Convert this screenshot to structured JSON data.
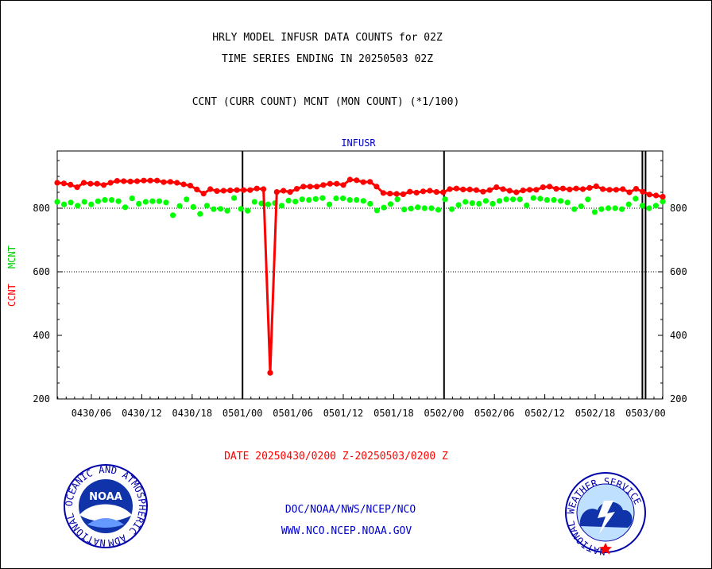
{
  "chart_data": {
    "type": "line",
    "title": "HRLY MODEL INFUSR DATA COUNTS for 02Z",
    "subtitle": "TIME SERIES ENDING IN 20250503 02Z",
    "description": "CCNT (CURR COUNT) MCNT (MON COUNT) (*1/100)",
    "panel_label": "INFUSR",
    "ylabel_ccnt": "CCNT",
    "ylabel_mcnt": "MCNT",
    "xlabel": "DATE 20250430/0200 Z-20250503/0200 Z",
    "ylim": [
      200,
      980
    ],
    "yticks": [
      200,
      400,
      600,
      800
    ],
    "xticks": [
      "0430/06",
      "0430/12",
      "0430/18",
      "0501/00",
      "0501/06",
      "0501/12",
      "0501/18",
      "0502/00",
      "0502/06",
      "0502/12",
      "0502/18",
      "0503/00"
    ],
    "grid_y": [
      600,
      800
    ],
    "colors": {
      "ccnt": "#ff0000",
      "mcnt": "#00ff00",
      "text_blue": "#0000cc",
      "axis": "#000000"
    },
    "series": [
      {
        "name": "CCNT",
        "values": [
          880,
          878,
          874,
          866,
          880,
          877,
          877,
          873,
          880,
          886,
          885,
          884,
          885,
          887,
          887,
          887,
          882,
          883,
          880,
          875,
          871,
          859,
          846,
          860,
          854,
          855,
          856,
          857,
          857,
          857,
          862,
          860,
          282,
          851,
          855,
          851,
          861,
          868,
          868,
          868,
          873,
          877,
          877,
          873,
          890,
          888,
          882,
          883,
          868,
          848,
          846,
          845,
          844,
          852,
          849,
          853,
          855,
          851,
          850,
          860,
          862,
          859,
          859,
          857,
          852,
          857,
          866,
          860,
          855,
          850,
          856,
          858,
          858,
          866,
          868,
          861,
          862,
          859,
          862,
          860,
          864,
          869,
          860,
          858,
          858,
          860,
          850,
          861,
          852,
          843,
          840,
          836
        ]
      },
      {
        "name": "MCNT",
        "values": [
          820,
          812,
          818,
          808,
          820,
          812,
          822,
          826,
          826,
          822,
          803,
          831,
          814,
          820,
          822,
          822,
          818,
          778,
          807,
          828,
          804,
          782,
          808,
          797,
          798,
          792,
          832,
          798,
          792,
          820,
          815,
          812,
          816,
          808,
          824,
          821,
          828,
          826,
          829,
          832,
          812,
          831,
          831,
          826,
          826,
          823,
          814,
          793,
          802,
          813,
          828,
          796,
          799,
          803,
          800,
          800,
          795,
          828,
          797,
          810,
          820,
          816,
          814,
          823,
          814,
          823,
          828,
          828,
          828,
          809,
          832,
          830,
          826,
          826,
          823,
          818,
          797,
          806,
          828,
          788,
          797,
          800,
          800,
          797,
          812,
          830,
          808,
          800,
          808,
          821
        ]
      }
    ]
  },
  "footer": {
    "link1": "DOC/NOAA/NWS/NCEP/NCO",
    "link2": "WWW.NCO.NCEP.NOAA.GOV"
  },
  "logos": {
    "noaa_text": "NOAA",
    "noaa_ring_text": "NATIONAL OCEANIC AND ATMOSPHERIC ADMINISTRATION · U.S. DEPARTMENT OF COMMERCE",
    "nws_ring_text": "NATIONAL WEATHER SERVICE"
  }
}
